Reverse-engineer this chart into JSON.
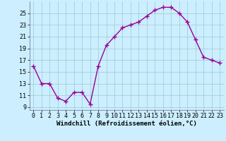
{
  "x": [
    0,
    1,
    2,
    3,
    4,
    5,
    6,
    7,
    8,
    9,
    10,
    11,
    12,
    13,
    14,
    15,
    16,
    17,
    18,
    19,
    20,
    21,
    22,
    23
  ],
  "y": [
    16,
    13,
    13,
    10.5,
    10,
    11.5,
    11.5,
    9.5,
    16,
    19.5,
    21,
    22.5,
    23,
    23.5,
    24.5,
    25.5,
    26,
    26,
    25,
    23.5,
    20.5,
    17.5,
    17,
    16.5
  ],
  "line_color": "#990099",
  "marker": "+",
  "marker_size": 4,
  "bg_color": "#cceeff",
  "grid_color": "#99cccc",
  "xlabel": "Windchill (Refroidissement éolien,°C)",
  "xlabel_fontsize": 6.5,
  "ylabel_ticks": [
    9,
    11,
    13,
    15,
    17,
    19,
    21,
    23,
    25
  ],
  "xlim": [
    -0.5,
    23.5
  ],
  "ylim": [
    8.5,
    27
  ],
  "xtick_labels": [
    "0",
    "1",
    "2",
    "3",
    "4",
    "5",
    "6",
    "7",
    "8",
    "9",
    "10",
    "11",
    "12",
    "13",
    "14",
    "15",
    "16",
    "17",
    "18",
    "19",
    "20",
    "21",
    "22",
    "23"
  ],
  "tick_fontsize": 6.0,
  "linewidth": 1.0,
  "markeredgewidth": 1.0
}
